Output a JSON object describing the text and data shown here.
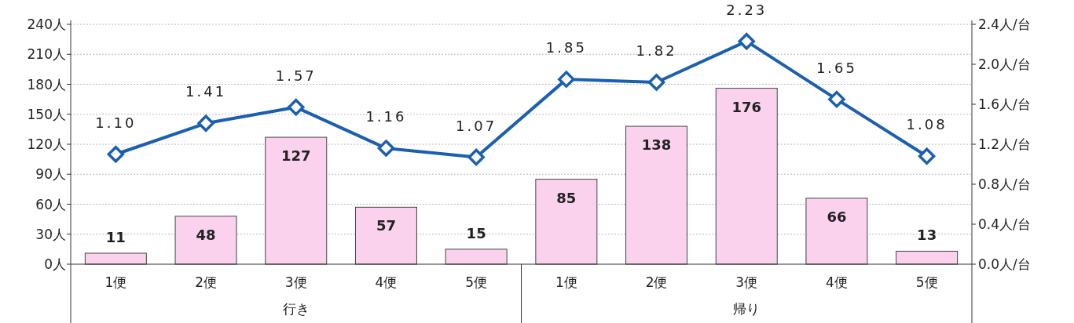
{
  "chart_data": {
    "type": "bar",
    "categories": [
      "1便",
      "2便",
      "3便",
      "4便",
      "5便",
      "1便",
      "2便",
      "3便",
      "4便",
      "5便"
    ],
    "series": [
      {
        "color": "#fad2ee",
        "values": [
          11,
          48,
          127,
          57,
          15,
          85,
          138,
          176,
          66,
          13
        ]
      },
      {
        "type": "line",
        "axis": "y2",
        "color": "#1b5fb0",
        "marker": "diamond",
        "line_style": "solid",
        "values": [
          1.1,
          1.41,
          1.57,
          1.16,
          1.07,
          1.85,
          1.82,
          2.23,
          1.65,
          1.08
        ],
        "value_labels": [
          "1.10",
          "1.41",
          "1.57",
          "1.16",
          "1.07",
          "1.85",
          "1.82",
          "2.23",
          "1.65",
          "1.08"
        ]
      }
    ],
    "data_labels": true,
    "ylim": [
      0,
      240
    ],
    "yticks": [
      {
        "value": 0,
        "label": "0人"
      },
      {
        "value": 30,
        "label": "30人"
      },
      {
        "value": 60,
        "label": "60人"
      },
      {
        "value": 90,
        "label": "90人"
      },
      {
        "value": 120,
        "label": "120人"
      },
      {
        "value": 150,
        "label": "150人"
      },
      {
        "value": 180,
        "label": "180人"
      },
      {
        "value": 210,
        "label": "210人"
      },
      {
        "value": 240,
        "label": "240人"
      }
    ],
    "y2lim": [
      0,
      2.4
    ],
    "y2ticks": [
      {
        "value": 0,
        "label": "0.0人/台"
      },
      {
        "value": 0.4,
        "label": "0.4人/台"
      },
      {
        "value": 0.8,
        "label": "0.8人/台"
      },
      {
        "value": 1.2,
        "label": "1.2人/台"
      },
      {
        "value": 1.6,
        "label": "1.6人/台"
      },
      {
        "value": 2.0,
        "label": "2.0人/台"
      },
      {
        "value": 2.4,
        "label": "2.4人/台"
      }
    ],
    "grid": "y",
    "annotations": [
      "行き",
      "帰り"
    ]
  }
}
